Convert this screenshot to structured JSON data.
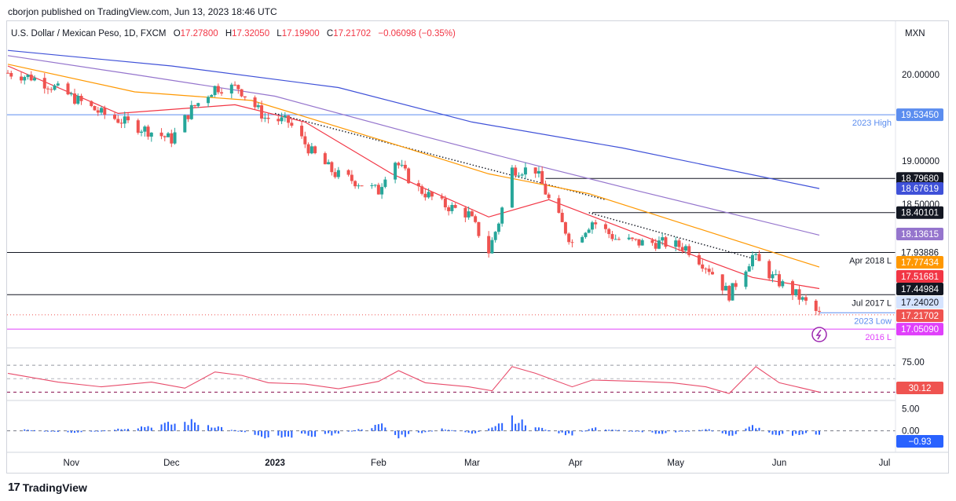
{
  "attribution": "cborjon published on TradingView.com, Jun 13, 2023 18:46 UTC",
  "footer": {
    "logo": "TradingView",
    "logo_mark": "17"
  },
  "legend": {
    "symbol": "U.S. Dollar / Mexican Peso, 1D, FXCM",
    "open_label": "O",
    "open": "17.27800",
    "high_label": "H",
    "high": "17.32050",
    "low_label": "L",
    "low": "17.19900",
    "close_label": "C",
    "close": "17.21702",
    "change": "−0.06098 (−0.35%)"
  },
  "colors": {
    "up": "#26a69a",
    "down": "#ef5350",
    "ema20": "#f23645",
    "ema50": "#ff9800",
    "ema100": "#9575cd",
    "ema200": "#3f51d8",
    "rsi": "#e84c6b",
    "hist": "#2962ff",
    "level_2016": "#e040fb",
    "low_2023": "#5b8def"
  },
  "chart_data": [
    {
      "type": "candlestick",
      "currency": "MXN",
      "ylim": [
        16.97,
        20.3
      ],
      "x_ticks": [
        "Nov",
        "Dec",
        "2023",
        "Feb",
        "Mar",
        "Apr",
        "May",
        "Jun",
        "Jul"
      ],
      "y_ticks": [
        "20.00000",
        "19.00000",
        "18.50000"
      ],
      "close_path": [
        [
          "2022-10-13",
          20.02
        ],
        [
          "2022-10-20",
          19.97
        ],
        [
          "2022-10-27",
          19.85
        ],
        [
          "2022-11-03",
          19.7
        ],
        [
          "2022-11-10",
          19.55
        ],
        [
          "2022-11-17",
          19.45
        ],
        [
          "2022-11-24",
          19.35
        ],
        [
          "2022-12-01",
          19.25
        ],
        [
          "2022-12-07",
          19.6
        ],
        [
          "2022-12-14",
          19.85
        ],
        [
          "2022-12-21",
          19.85
        ],
        [
          "2022-12-29",
          19.5
        ],
        [
          "2023-01-05",
          19.45
        ],
        [
          "2023-01-12",
          19.1
        ],
        [
          "2023-01-19",
          18.85
        ],
        [
          "2023-01-26",
          18.75
        ],
        [
          "2023-02-01",
          18.65
        ],
        [
          "2023-02-05",
          19.05
        ],
        [
          "2023-02-12",
          18.7
        ],
        [
          "2023-02-20",
          18.5
        ],
        [
          "2023-02-28",
          18.38
        ],
        [
          "2023-03-06",
          17.95
        ],
        [
          "2023-03-09",
          18.3
        ],
        [
          "2023-03-13",
          18.9
        ],
        [
          "2023-03-20",
          18.9
        ],
        [
          "2023-03-24",
          18.55
        ],
        [
          "2023-03-31",
          18.05
        ],
        [
          "2023-04-06",
          18.3
        ],
        [
          "2023-04-13",
          18.1
        ],
        [
          "2023-04-20",
          18.05
        ],
        [
          "2023-04-27",
          18.05
        ],
        [
          "2023-05-04",
          18.0
        ],
        [
          "2023-05-11",
          17.75
        ],
        [
          "2023-05-17",
          17.45
        ],
        [
          "2023-05-24",
          17.9
        ],
        [
          "2023-05-30",
          17.65
        ],
        [
          "2023-06-06",
          17.45
        ],
        [
          "2023-06-13",
          17.22
        ]
      ],
      "series": [
        {
          "name": "",
          "last_label": "17.51681",
          "values": [
            [
              "2022-10-13",
              20.1
            ],
            [
              "2022-11-15",
              19.55
            ],
            [
              "2022-12-20",
              19.65
            ],
            [
              "2023-01-10",
              19.45
            ],
            [
              "2023-02-05",
              18.85
            ],
            [
              "2023-03-06",
              18.35
            ],
            [
              "2023-03-24",
              18.55
            ],
            [
              "2023-04-20",
              18.15
            ],
            [
              "2023-05-10",
              17.85
            ],
            [
              "2023-05-24",
              17.65
            ],
            [
              "2023-06-13",
              17.52
            ]
          ]
        },
        {
          "name": "",
          "last_label": "17.77434",
          "values": [
            [
              "2022-10-13",
              20.12
            ],
            [
              "2022-11-20",
              19.8
            ],
            [
              "2022-12-25",
              19.7
            ],
            [
              "2023-02-01",
              19.25
            ],
            [
              "2023-03-06",
              18.85
            ],
            [
              "2023-04-05",
              18.62
            ],
            [
              "2023-05-05",
              18.25
            ],
            [
              "2023-06-13",
              17.77
            ]
          ]
        },
        {
          "name": "",
          "last_label": "18.13615",
          "values": [
            [
              "2022-10-13",
              20.22
            ],
            [
              "2022-11-20",
              20.0
            ],
            [
              "2023-01-01",
              19.75
            ],
            [
              "2023-02-15",
              19.28
            ],
            [
              "2023-03-20",
              18.95
            ],
            [
              "2023-04-20",
              18.65
            ],
            [
              "2023-06-13",
              18.14
            ]
          ]
        },
        {
          "name": "",
          "last_label": "18.67619",
          "values": [
            [
              "2022-10-13",
              20.28
            ],
            [
              "2022-12-01",
              20.1
            ],
            [
              "2023-01-20",
              19.85
            ],
            [
              "2023-03-01",
              19.45
            ],
            [
              "2023-04-15",
              19.15
            ],
            [
              "2023-06-13",
              18.68
            ]
          ]
        }
      ],
      "horizontal_levels": [
        {
          "value": 19.5345,
          "label": "2023 High",
          "tag": "19.53450"
        },
        {
          "value": 18.7968,
          "label": "",
          "tag": "18.79680"
        },
        {
          "value": 18.40101,
          "label": "",
          "tag": "18.40101"
        },
        {
          "value": 17.93886,
          "label": "Apr 2018 L",
          "tag": "17.93886"
        },
        {
          "value": 17.44984,
          "label": "Jul 2017 L",
          "tag": "17.44984"
        },
        {
          "value": 17.2402,
          "label": "2023 Low",
          "tag": "17.24020"
        },
        {
          "value": 17.0509,
          "label": "2016 L",
          "tag": "17.05090"
        },
        {
          "value": 17.21702,
          "label": "",
          "tag": "17.21702"
        }
      ],
      "trendlines": [
        {
          "from": [
            "2023-01-01",
            19.55
          ],
          "to": [
            "2023-04-10",
            18.55
          ]
        },
        {
          "from": [
            "2023-04-05",
            18.4
          ],
          "to": [
            "2023-05-26",
            17.85
          ]
        }
      ]
    },
    {
      "type": "line",
      "ylim": [
        20,
        90
      ],
      "y_ticks": [
        "75.00"
      ],
      "last_label": "30.12",
      "levels": [
        70,
        30
      ],
      "values": [
        [
          "2022-10-13",
          58
        ],
        [
          "2022-10-28",
          45
        ],
        [
          "2022-11-10",
          38
        ],
        [
          "2022-11-25",
          45
        ],
        [
          "2022-12-05",
          36
        ],
        [
          "2022-12-14",
          60
        ],
        [
          "2022-12-22",
          55
        ],
        [
          "2022-12-30",
          44
        ],
        [
          "2023-01-10",
          42
        ],
        [
          "2023-01-20",
          35
        ],
        [
          "2023-02-01",
          46
        ],
        [
          "2023-02-07",
          62
        ],
        [
          "2023-02-15",
          44
        ],
        [
          "2023-02-28",
          38
        ],
        [
          "2023-03-07",
          32
        ],
        [
          "2023-03-13",
          68
        ],
        [
          "2023-03-20",
          58
        ],
        [
          "2023-03-31",
          38
        ],
        [
          "2023-04-06",
          48
        ],
        [
          "2023-04-20",
          46
        ],
        [
          "2023-04-30",
          44
        ],
        [
          "2023-05-10",
          38
        ],
        [
          "2023-05-17",
          28
        ],
        [
          "2023-05-25",
          68
        ],
        [
          "2023-06-01",
          44
        ],
        [
          "2023-06-13",
          30.12
        ]
      ]
    },
    {
      "type": "bar",
      "ylim": [
        -4.5,
        6.5
      ],
      "y_ticks": [
        "5.00",
        "0.00"
      ],
      "last_label": "−0.93",
      "values": [
        [
          "2022-10-18",
          0.4
        ],
        [
          "2022-11-02",
          -0.8
        ],
        [
          "2022-11-15",
          0.6
        ],
        [
          "2022-12-07",
          2.8
        ],
        [
          "2022-12-14",
          1.5
        ],
        [
          "2022-12-29",
          -1.8
        ],
        [
          "2023-01-18",
          -1.2
        ],
        [
          "2023-02-02",
          1.9
        ],
        [
          "2023-02-07",
          -2.1
        ],
        [
          "2023-02-20",
          0.7
        ],
        [
          "2023-03-02",
          -0.9
        ],
        [
          "2023-03-13",
          4.6
        ],
        [
          "2023-03-17",
          2.0
        ],
        [
          "2023-03-31",
          -1.6
        ],
        [
          "2023-04-06",
          0.9
        ],
        [
          "2023-04-26",
          -0.8
        ],
        [
          "2023-05-11",
          0.5
        ],
        [
          "2023-05-17",
          -1.9
        ],
        [
          "2023-05-24",
          1.6
        ],
        [
          "2023-05-31",
          -1.4
        ],
        [
          "2023-06-13",
          -0.93
        ]
      ]
    }
  ]
}
